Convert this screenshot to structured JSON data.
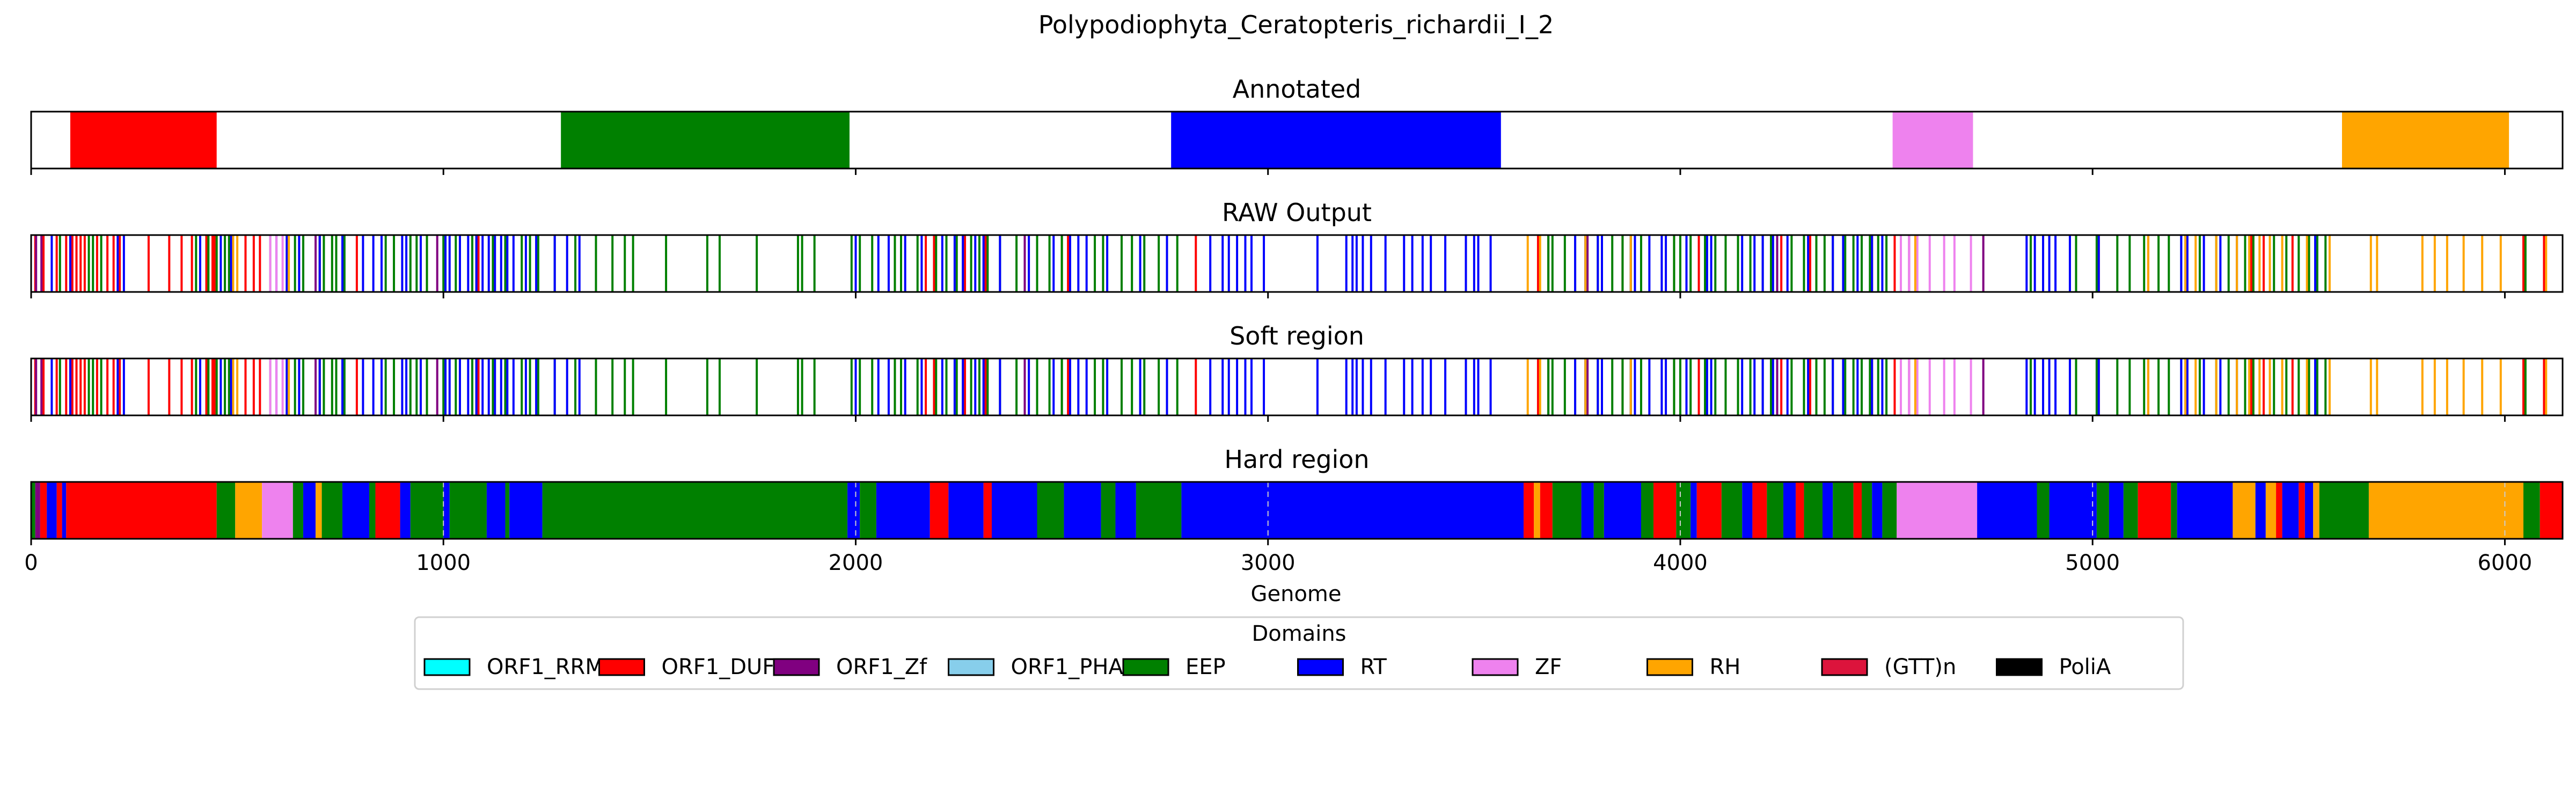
{
  "chart_data": {
    "type": "bar",
    "title": "Polypodiophyta_Ceratopteris_richardii_I_2",
    "xlabel": "Genome",
    "xlim": [
      0,
      6140
    ],
    "xticks": [
      0,
      1000,
      2000,
      3000,
      4000,
      5000,
      6000
    ],
    "colors": {
      "ORF1_RRM": "#00ffff",
      "ORF1_DUF": "#ff0000",
      "ORF1_Zf": "#800080",
      "ORF1_PHA": "#87ceeb",
      "EEP": "#008000",
      "RT": "#0000ff",
      "ZF": "#ee82ee",
      "RH": "#ffa500",
      "(GTT)n": "#dc143c",
      "PoliA": "#000000"
    },
    "legend": {
      "title": "Domains",
      "position": "bottom-center",
      "entries": [
        "ORF1_RRM",
        "ORF1_DUF",
        "ORF1_Zf",
        "ORF1_PHA",
        "EEP",
        "RT",
        "ZF",
        "RH",
        "(GTT)n",
        "PoliA"
      ]
    },
    "panels": [
      {
        "title": "Annotated",
        "segments": [
          {
            "domain": "ORF1_DUF",
            "start": 95,
            "end": 450
          },
          {
            "domain": "EEP",
            "start": 1285,
            "end": 1985
          },
          {
            "domain": "RT",
            "start": 2765,
            "end": 3565
          },
          {
            "domain": "ZF",
            "start": 4515,
            "end": 4710
          },
          {
            "domain": "RH",
            "start": 5605,
            "end": 6010
          }
        ]
      },
      {
        "title": "RAW Output",
        "marks": {
          "ORF1_DUF": [
            10,
            30,
            62,
            85,
            100,
            110,
            120,
            130,
            160,
            185,
            200,
            215,
            285,
            335,
            365,
            390,
            425,
            440,
            445,
            520,
            540,
            555,
            700,
            790,
            960,
            1085,
            2095,
            2170,
            2190,
            2265,
            2315,
            2500,
            2515,
            2825,
            3655,
            3860,
            3985,
            4045,
            4245,
            4315,
            4465,
            4520,
            5015,
            5385,
            5415,
            5485,
            6045,
            6095
          ],
          "ORF1_Zf": [
            12,
            25,
            470,
            690,
            985,
            2410,
            3680,
            3775,
            4235,
            4555,
            4735,
            5135
          ],
          "EEP": [
            70,
            140,
            150,
            170,
            400,
            430,
            450,
            470,
            480,
            580,
            640,
            660,
            700,
            710,
            730,
            740,
            760,
            850,
            860,
            880,
            920,
            935,
            960,
            1000,
            1030,
            1040,
            1070,
            1080,
            1120,
            1150,
            1190,
            1210,
            1230,
            1270,
            1320,
            1370,
            1410,
            1440,
            1460,
            1540,
            1640,
            1670,
            1760,
            1860,
            1870,
            1900,
            1990,
            2010,
            2040,
            2095,
            2110,
            2150,
            2195,
            2220,
            2245,
            2260,
            2280,
            2300,
            2320,
            2350,
            2390,
            2440,
            2470,
            2500,
            2580,
            2600,
            2645,
            2670,
            2700,
            2735,
            2780,
            3680,
            3690,
            3720,
            3745,
            3770,
            3800,
            3835,
            3860,
            3880,
            3905,
            3985,
            4000,
            4025,
            4060,
            4085,
            4110,
            4140,
            4170,
            4200,
            4220,
            4270,
            4300,
            4330,
            4350,
            4370,
            4400,
            4420,
            4440,
            4460,
            4480,
            4500,
            4850,
            4880,
            4960,
            5010,
            5060,
            5090,
            5125,
            5160,
            5185,
            5215,
            5260,
            5300,
            5330,
            5350,
            5370,
            5390,
            5440,
            5470,
            5500,
            5525,
            5545,
            5565,
            6050
          ],
          "RT": [
            50,
            95,
            210,
            225,
            410,
            460,
            485,
            595,
            620,
            650,
            700,
            755,
            805,
            830,
            850,
            900,
            910,
            945,
            1005,
            1015,
            1040,
            1060,
            1080,
            1095,
            1110,
            1125,
            1140,
            1155,
            1170,
            1200,
            1225,
            1270,
            1300,
            1330,
            2000,
            2055,
            2080,
            2120,
            2160,
            2210,
            2240,
            2260,
            2290,
            2310,
            2350,
            2420,
            2480,
            2520,
            2540,
            2560,
            2610,
            2690,
            2755,
            2860,
            2890,
            2905,
            2925,
            2945,
            2960,
            2990,
            3120,
            3190,
            3205,
            3215,
            3230,
            3250,
            3285,
            3330,
            3350,
            3375,
            3395,
            3430,
            3480,
            3500,
            3510,
            3540,
            3745,
            3770,
            3800,
            3810,
            3880,
            3890,
            3925,
            3955,
            3965,
            4015,
            4065,
            4075,
            4150,
            4180,
            4200,
            4225,
            4260,
            4310,
            4370,
            4395,
            4430,
            4465,
            4490,
            4840,
            4860,
            4880,
            4895,
            4910,
            4945,
            5015,
            5215,
            5230,
            5270,
            5310,
            5350,
            5540
          ],
          "ZF": [
            580,
            595,
            610,
            4535,
            4555,
            4575,
            4605,
            4640,
            4665,
            4705
          ],
          "RH": [
            490,
            500,
            625,
            3630,
            3660,
            3770,
            3880,
            4570,
            5135,
            5225,
            5250,
            5300,
            5350,
            5380,
            5405,
            5430,
            5460,
            5520,
            5575,
            5675,
            5690,
            5800,
            5830,
            5860,
            5900,
            5945,
            5990,
            6100
          ]
        }
      },
      {
        "title": "Soft region",
        "marks": "same_as_raw"
      },
      {
        "title": "Hard region",
        "segments": [
          {
            "domain": "EEP",
            "start": 0,
            "end": 10
          },
          {
            "domain": "ORF1_Zf",
            "start": 10,
            "end": 22
          },
          {
            "domain": "ORF1_DUF",
            "start": 22,
            "end": 38
          },
          {
            "domain": "RT",
            "start": 38,
            "end": 62
          },
          {
            "domain": "ORF1_DUF",
            "start": 62,
            "end": 75
          },
          {
            "domain": "RT",
            "start": 75,
            "end": 85
          },
          {
            "domain": "ORF1_DUF",
            "start": 85,
            "end": 450
          },
          {
            "domain": "EEP",
            "start": 450,
            "end": 495
          },
          {
            "domain": "RH",
            "start": 495,
            "end": 560
          },
          {
            "domain": "ZF",
            "start": 560,
            "end": 635
          },
          {
            "domain": "EEP",
            "start": 635,
            "end": 660
          },
          {
            "domain": "RT",
            "start": 660,
            "end": 690
          },
          {
            "domain": "RH",
            "start": 690,
            "end": 705
          },
          {
            "domain": "EEP",
            "start": 705,
            "end": 755
          },
          {
            "domain": "RT",
            "start": 755,
            "end": 820
          },
          {
            "domain": "EEP",
            "start": 820,
            "end": 835
          },
          {
            "domain": "ORF1_DUF",
            "start": 835,
            "end": 895
          },
          {
            "domain": "RT",
            "start": 895,
            "end": 920
          },
          {
            "domain": "EEP",
            "start": 920,
            "end": 1000
          },
          {
            "domain": "RT",
            "start": 1000,
            "end": 1015
          },
          {
            "domain": "EEP",
            "start": 1015,
            "end": 1105
          },
          {
            "domain": "RT",
            "start": 1105,
            "end": 1150
          },
          {
            "domain": "EEP",
            "start": 1150,
            "end": 1160
          },
          {
            "domain": "RT",
            "start": 1160,
            "end": 1240
          },
          {
            "domain": "EEP",
            "start": 1240,
            "end": 1980
          },
          {
            "domain": "RT",
            "start": 1980,
            "end": 2010
          },
          {
            "domain": "EEP",
            "start": 2010,
            "end": 2050
          },
          {
            "domain": "RT",
            "start": 2050,
            "end": 2180
          },
          {
            "domain": "ORF1_DUF",
            "start": 2180,
            "end": 2225
          },
          {
            "domain": "RT",
            "start": 2225,
            "end": 2310
          },
          {
            "domain": "ORF1_DUF",
            "start": 2310,
            "end": 2330
          },
          {
            "domain": "RT",
            "start": 2330,
            "end": 2440
          },
          {
            "domain": "EEP",
            "start": 2440,
            "end": 2505
          },
          {
            "domain": "RT",
            "start": 2505,
            "end": 2595
          },
          {
            "domain": "EEP",
            "start": 2595,
            "end": 2630
          },
          {
            "domain": "RT",
            "start": 2630,
            "end": 2680
          },
          {
            "domain": "EEP",
            "start": 2680,
            "end": 2790
          },
          {
            "domain": "RT",
            "start": 2790,
            "end": 3620
          },
          {
            "domain": "ORF1_DUF",
            "start": 3620,
            "end": 3645
          },
          {
            "domain": "RH",
            "start": 3645,
            "end": 3660
          },
          {
            "domain": "ORF1_DUF",
            "start": 3660,
            "end": 3690
          },
          {
            "domain": "EEP",
            "start": 3690,
            "end": 3760
          },
          {
            "domain": "RT",
            "start": 3760,
            "end": 3790
          },
          {
            "domain": "EEP",
            "start": 3790,
            "end": 3815
          },
          {
            "domain": "RT",
            "start": 3815,
            "end": 3905
          },
          {
            "domain": "EEP",
            "start": 3905,
            "end": 3935
          },
          {
            "domain": "ORF1_DUF",
            "start": 3935,
            "end": 3990
          },
          {
            "domain": "EEP",
            "start": 3990,
            "end": 4025
          },
          {
            "domain": "RT",
            "start": 4025,
            "end": 4040
          },
          {
            "domain": "ORF1_DUF",
            "start": 4040,
            "end": 4100
          },
          {
            "domain": "EEP",
            "start": 4100,
            "end": 4150
          },
          {
            "domain": "RT",
            "start": 4150,
            "end": 4175
          },
          {
            "domain": "ORF1_DUF",
            "start": 4175,
            "end": 4210
          },
          {
            "domain": "EEP",
            "start": 4210,
            "end": 4250
          },
          {
            "domain": "RT",
            "start": 4250,
            "end": 4280
          },
          {
            "domain": "ORF1_DUF",
            "start": 4280,
            "end": 4300
          },
          {
            "domain": "EEP",
            "start": 4300,
            "end": 4345
          },
          {
            "domain": "RT",
            "start": 4345,
            "end": 4370
          },
          {
            "domain": "EEP",
            "start": 4370,
            "end": 4420
          },
          {
            "domain": "ORF1_DUF",
            "start": 4420,
            "end": 4440
          },
          {
            "domain": "EEP",
            "start": 4440,
            "end": 4465
          },
          {
            "domain": "RT",
            "start": 4465,
            "end": 4490
          },
          {
            "domain": "EEP",
            "start": 4490,
            "end": 4525
          },
          {
            "domain": "ZF",
            "start": 4525,
            "end": 4720
          },
          {
            "domain": "RT",
            "start": 4720,
            "end": 4865
          },
          {
            "domain": "EEP",
            "start": 4865,
            "end": 4895
          },
          {
            "domain": "RT",
            "start": 4895,
            "end": 5010
          },
          {
            "domain": "EEP",
            "start": 5010,
            "end": 5040
          },
          {
            "domain": "RT",
            "start": 5040,
            "end": 5075
          },
          {
            "domain": "EEP",
            "start": 5075,
            "end": 5110
          },
          {
            "domain": "ORF1_DUF",
            "start": 5110,
            "end": 5190
          },
          {
            "domain": "EEP",
            "start": 5190,
            "end": 5205
          },
          {
            "domain": "RT",
            "start": 5205,
            "end": 5340
          },
          {
            "domain": "RH",
            "start": 5340,
            "end": 5395
          },
          {
            "domain": "RT",
            "start": 5395,
            "end": 5420
          },
          {
            "domain": "RH",
            "start": 5420,
            "end": 5445
          },
          {
            "domain": "ORF1_DUF",
            "start": 5445,
            "end": 5460
          },
          {
            "domain": "RT",
            "start": 5460,
            "end": 5500
          },
          {
            "domain": "ORF1_DUF",
            "start": 5500,
            "end": 5515
          },
          {
            "domain": "RT",
            "start": 5515,
            "end": 5535
          },
          {
            "domain": "RH",
            "start": 5535,
            "end": 5550
          },
          {
            "domain": "EEP",
            "start": 5550,
            "end": 5670
          },
          {
            "domain": "RH",
            "start": 5670,
            "end": 6045
          },
          {
            "domain": "EEP",
            "start": 6045,
            "end": 6085
          },
          {
            "domain": "ORF1_DUF",
            "start": 6085,
            "end": 6140
          }
        ]
      }
    ]
  }
}
